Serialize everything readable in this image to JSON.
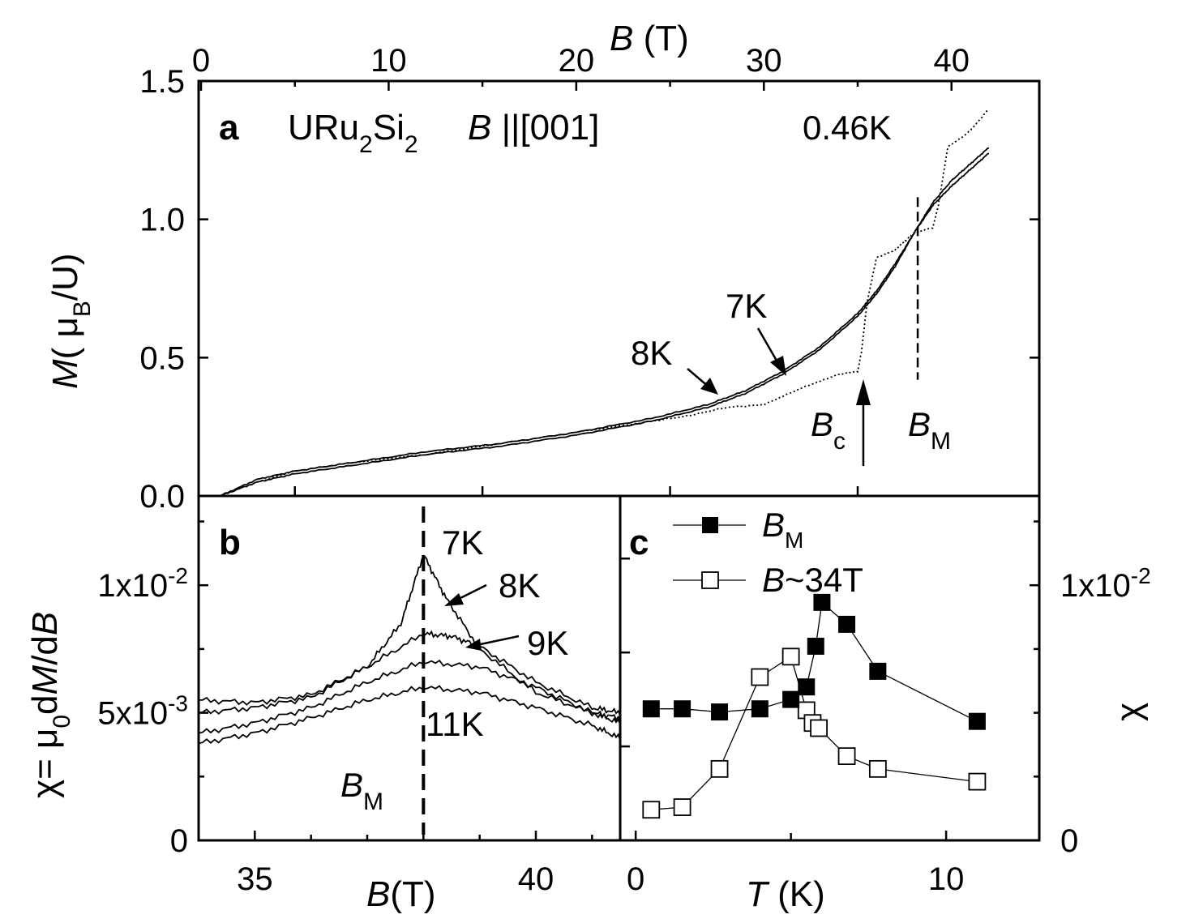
{
  "figure": {
    "panel_a": {
      "letter": "a",
      "compound": {
        "base1": "URu",
        "sub1": "2",
        "base2": "Si",
        "sub2": "2"
      },
      "field_dir": {
        "sym": "B",
        "rest": " ||[001]"
      },
      "top_xlabel": {
        "sym": "B",
        "unit": " (T)"
      },
      "ylabel": {
        "sym": "M",
        "pre": "( μ",
        "sub": "B",
        "post": "/U)"
      },
      "labels": {
        "t046": "0.46K",
        "t7": "7K",
        "t8": "8K",
        "bc": {
          "sym": "B",
          "sub": "c"
        },
        "bm": {
          "sym": "B",
          "sub": "M"
        }
      }
    },
    "panel_b": {
      "letter": "b",
      "xlabel": {
        "sym": "B",
        "unit": "(T)"
      },
      "ylabel": {
        "pre": "χ=  μ",
        "sub": "0",
        "mid": "d",
        "M": "M",
        "slash": "/d",
        "B": "B"
      },
      "labels": {
        "t7": "7K",
        "t8": "8K",
        "t9": "9K",
        "t11": "11K",
        "bm": {
          "sym": "B",
          "sub": "M"
        }
      }
    },
    "panel_c": {
      "letter": "c",
      "xlabel": {
        "sym": "T",
        "unit": " (K)"
      },
      "right_ylabel": "χ",
      "legend": [
        {
          "sym": "B",
          "sub": "M",
          "rest": ""
        },
        {
          "sym": "B",
          "sub": "",
          "rest": "~34T"
        }
      ]
    }
  },
  "chart_data": [
    {
      "type": "line",
      "panel": "a",
      "xlabel": "B (T)",
      "ylabel": "M( μB/U)",
      "xlim": [
        0,
        42
      ],
      "ylim": [
        0.0,
        1.5
      ],
      "x_ticks": [
        0,
        10,
        20,
        30,
        40
      ],
      "y_ticks": [
        "0.0",
        "0.5",
        "1.0",
        "1.5"
      ],
      "series": [
        {
          "name": "0.46K",
          "style": "dotted",
          "x": [
            1,
            3,
            5,
            8,
            12,
            16,
            20,
            24,
            26,
            28,
            30,
            32,
            34,
            35.0,
            35.2,
            35.5,
            36,
            37,
            37.5,
            38,
            39,
            39.3,
            39.8,
            41,
            42
          ],
          "y": [
            0,
            0.05,
            0.09,
            0.12,
            0.15,
            0.19,
            0.23,
            0.27,
            0.29,
            0.32,
            0.33,
            0.39,
            0.44,
            0.45,
            0.52,
            0.7,
            0.86,
            0.89,
            0.92,
            0.95,
            0.97,
            1.05,
            1.26,
            1.32,
            1.4
          ]
        },
        {
          "name": "7K",
          "style": "solid",
          "x": [
            1,
            3,
            5,
            8,
            12,
            16,
            20,
            24,
            27,
            29,
            31,
            33,
            35,
            36,
            37,
            38,
            39,
            40,
            41,
            42
          ],
          "y": [
            0,
            0.05,
            0.08,
            0.11,
            0.15,
            0.18,
            0.22,
            0.27,
            0.32,
            0.37,
            0.44,
            0.53,
            0.65,
            0.73,
            0.83,
            0.95,
            1.06,
            1.14,
            1.2,
            1.26
          ]
        },
        {
          "name": "8K",
          "style": "solid",
          "x": [
            1,
            3,
            5,
            8,
            12,
            16,
            20,
            24,
            27,
            29,
            31,
            33,
            35,
            36,
            37,
            38,
            39,
            40,
            41,
            42
          ],
          "y": [
            0,
            0.06,
            0.09,
            0.12,
            0.16,
            0.19,
            0.23,
            0.28,
            0.33,
            0.38,
            0.45,
            0.54,
            0.66,
            0.74,
            0.84,
            0.95,
            1.05,
            1.12,
            1.18,
            1.24
          ]
        }
      ],
      "annotations": [
        "0.46K",
        "7K",
        "8K",
        "Bc",
        "BM"
      ],
      "Bc": 35.3,
      "BM": 38.2
    },
    {
      "type": "line",
      "panel": "b",
      "xlabel": "B(T)",
      "ylabel": "χ=  μ0dM/dB",
      "xlim": [
        34,
        41.5
      ],
      "ylim": [
        0,
        0.0135
      ],
      "x_ticks": [
        35,
        40
      ],
      "y_ticks": [
        "0",
        "5x10-3",
        "1x10-2"
      ],
      "series": [
        {
          "name": "7K",
          "x": [
            34,
            35,
            36,
            37,
            37.6,
            38.0,
            38.4,
            39,
            40,
            41,
            41.5
          ],
          "y": [
            0.0055,
            0.0054,
            0.0057,
            0.0068,
            0.0085,
            0.0112,
            0.0095,
            0.0075,
            0.0058,
            0.005,
            0.0048
          ]
        },
        {
          "name": "8K",
          "x": [
            34,
            35,
            36,
            37,
            38.0,
            38.5,
            39,
            40,
            41,
            41.5
          ],
          "y": [
            0.005,
            0.0052,
            0.0056,
            0.0068,
            0.0081,
            0.008,
            0.0076,
            0.0062,
            0.0052,
            0.005
          ]
        },
        {
          "name": "9K",
          "x": [
            34,
            35,
            36,
            37,
            38,
            39,
            40,
            41,
            41.5
          ],
          "y": [
            0.0042,
            0.0046,
            0.0052,
            0.0062,
            0.007,
            0.0068,
            0.006,
            0.005,
            0.0046
          ]
        },
        {
          "name": "11K",
          "x": [
            34,
            35,
            36,
            37,
            38,
            39,
            40,
            41,
            41.5
          ],
          "y": [
            0.0038,
            0.0042,
            0.0048,
            0.0055,
            0.006,
            0.0058,
            0.0052,
            0.0045,
            0.004
          ]
        }
      ],
      "BM": 38.0
    },
    {
      "type": "scatter",
      "panel": "c",
      "xlabel": "T (K)",
      "ylabel": "χ",
      "xlim": [
        -0.5,
        13
      ],
      "x_ticks": [
        0,
        10
      ],
      "ylim_left": [
        30,
        41
      ],
      "ylim_right": [
        0,
        0.0135
      ],
      "right_y_ticks": [
        "0",
        "1x10-2"
      ],
      "series": [
        {
          "name": "BM",
          "marker": "filled-square",
          "axis": "left",
          "x": [
            0.5,
            1.5,
            2.7,
            4.0,
            5.0,
            5.5,
            5.8,
            6.0,
            6.8,
            7.8,
            11.0
          ],
          "y": [
            34.2,
            34.2,
            34.1,
            34.2,
            34.5,
            34.9,
            36.2,
            37.6,
            36.9,
            35.4,
            33.8
          ]
        }
      ],
      "series_right": [
        {
          "name": "B~34T",
          "marker": "open-square",
          "axis": "right",
          "x": [
            0.5,
            1.5,
            2.7,
            4.0,
            5.0,
            5.5,
            5.7,
            5.9,
            6.8,
            7.8,
            11.0
          ],
          "y": [
            0.0012,
            0.0013,
            0.0028,
            0.0064,
            0.0072,
            0.0051,
            0.0046,
            0.0044,
            0.0033,
            0.0028,
            0.0023
          ]
        }
      ]
    }
  ]
}
